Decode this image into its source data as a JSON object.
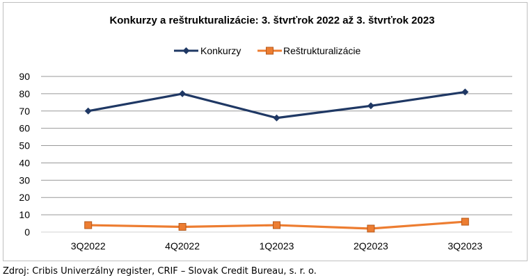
{
  "source_note": "Zdroj: Cribis Univerzálny register, CRIF – Slovak Credit Bureau, s. r. o.",
  "chart_data": {
    "type": "line",
    "title": "Konkurzy a reštrukturalizácie: 3. štvrťrok 2022 až 3. štvrťrok 2023",
    "categories": [
      "3Q2022",
      "4Q2022",
      "1Q2023",
      "2Q2023",
      "3Q2023"
    ],
    "series": [
      {
        "name": "Konkurzy",
        "values": [
          70,
          80,
          66,
          73,
          81
        ],
        "color": "#1f3864",
        "marker": "diamond"
      },
      {
        "name": "Reštrukturalizácie",
        "values": [
          4,
          3,
          4,
          2,
          6
        ],
        "color": "#ed7d31",
        "marker": "square"
      }
    ],
    "ylim": [
      0,
      90
    ],
    "yticks": [
      0,
      10,
      20,
      30,
      40,
      50,
      60,
      70,
      80,
      90
    ],
    "xlabel": "",
    "ylabel": "",
    "grid": true,
    "legend": "top-center"
  }
}
